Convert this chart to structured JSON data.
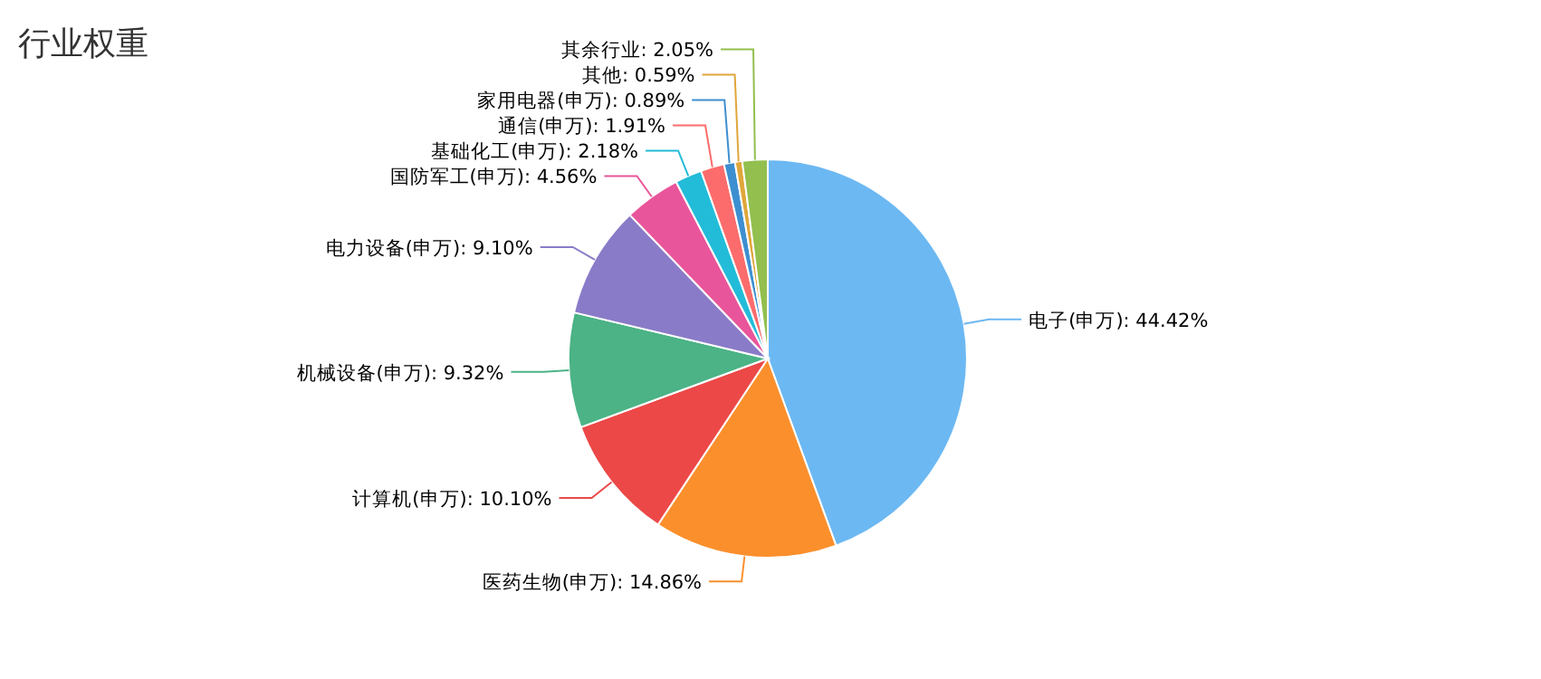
{
  "chart_data": {
    "type": "pie",
    "title": "行业权重",
    "categories": [
      "电子(申万)",
      "医药生物(申万)",
      "计算机(申万)",
      "机械设备(申万)",
      "电力设备(申万)",
      "国防军工(申万)",
      "基础化工(申万)",
      "通信(申万)",
      "家用电器(申万)",
      "其他",
      "其余行业"
    ],
    "values": [
      44.42,
      14.86,
      10.1,
      9.32,
      9.1,
      4.56,
      2.18,
      1.91,
      0.89,
      0.59,
      2.05
    ],
    "value_labels": [
      "44.42%",
      "14.86%",
      "10.10%",
      "9.32%",
      "9.10%",
      "4.56%",
      "2.18%",
      "1.91%",
      "0.89%",
      "0.59%",
      "2.05%"
    ],
    "colors": [
      "#6cb8f2",
      "#fb8f2c",
      "#ec4848",
      "#4bb386",
      "#8a7bc8",
      "#e9559a",
      "#22bcd9",
      "#fc6c6c",
      "#3d8fd0",
      "#e0a63a",
      "#92bf4e"
    ]
  }
}
